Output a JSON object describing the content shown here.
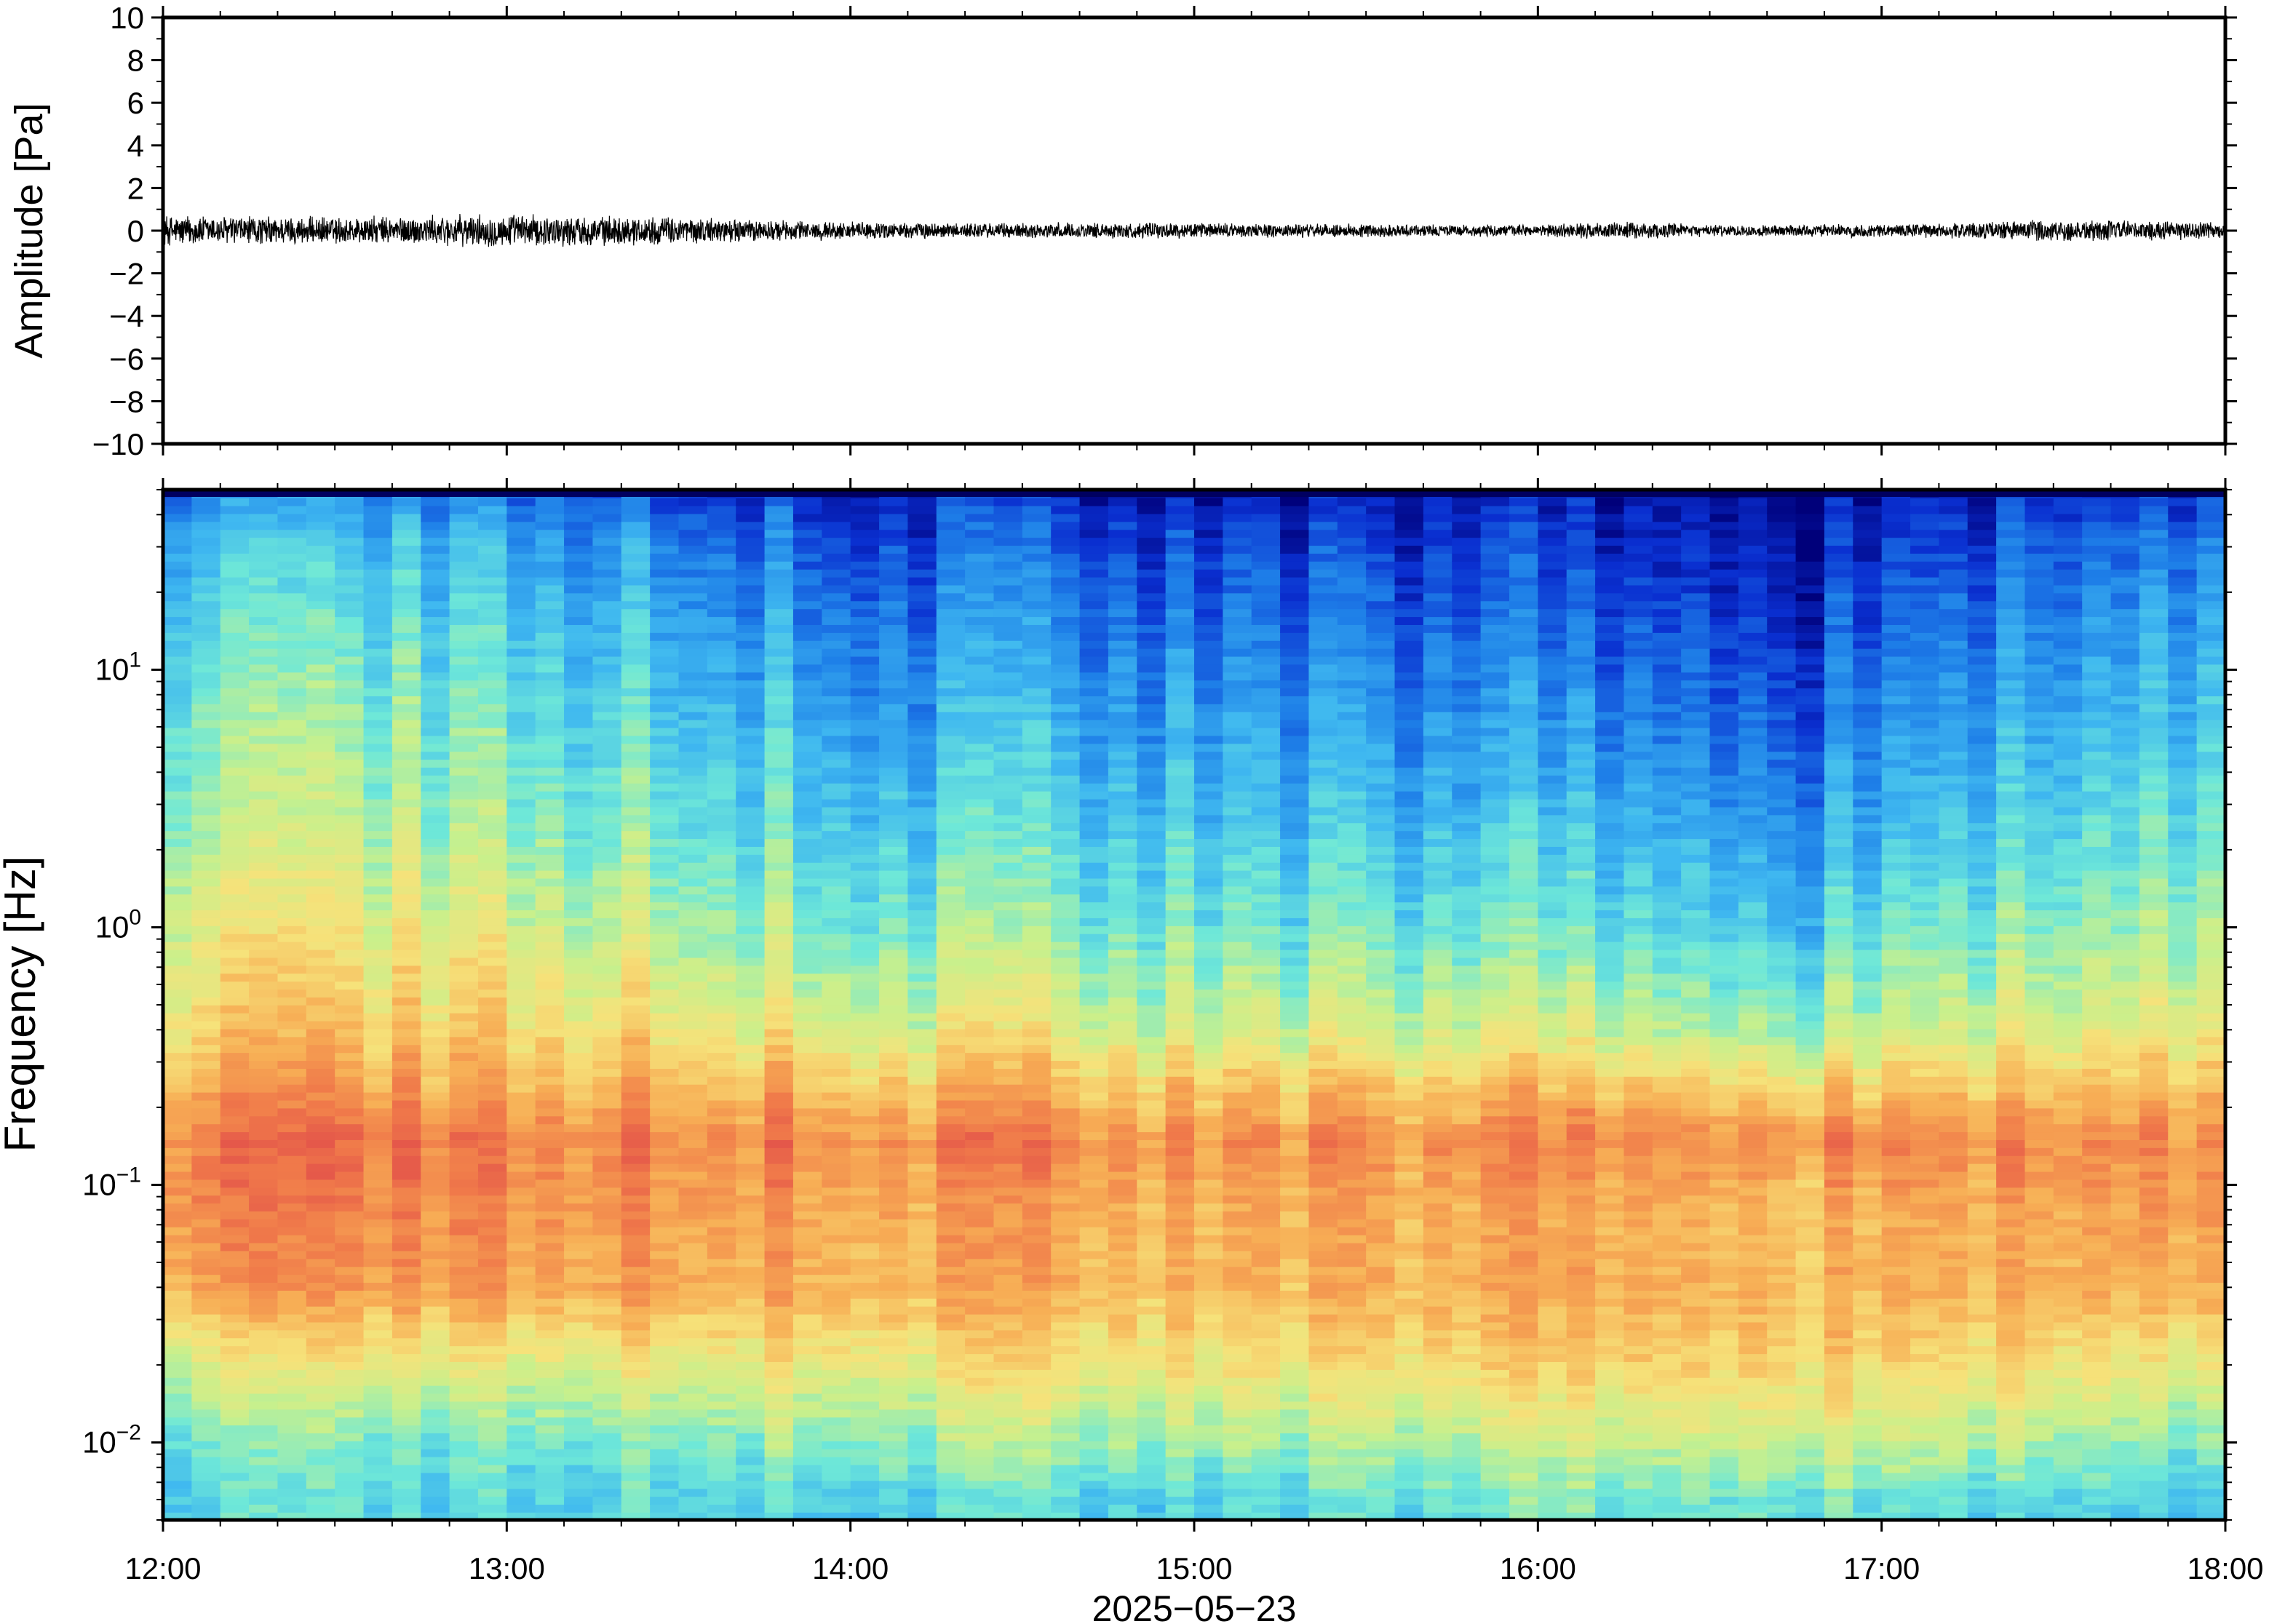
{
  "chart_data": [
    {
      "type": "line",
      "panel": "waveform",
      "ylabel": "Amplitude [Pa]",
      "ylim": [
        -10,
        10
      ],
      "yticks": [
        10,
        8,
        6,
        4,
        2,
        0,
        -2,
        -4,
        -6,
        -8,
        -10
      ],
      "ytick_labels": [
        "10",
        "8",
        "6",
        "4",
        "2",
        "0",
        "−2",
        "−4",
        "−6",
        "−8",
        "−10"
      ],
      "xlim": [
        "12:00",
        "18:00"
      ],
      "series": [
        {
          "color": "#000000",
          "envelope": {
            "x_hours": [
              12.0,
              12.25,
              12.5,
              12.75,
              13.0,
              13.25,
              13.5,
              13.75,
              14.0,
              14.25,
              14.5,
              14.75,
              15.0,
              15.25,
              15.5,
              15.75,
              16.0,
              16.25,
              16.5,
              16.75,
              17.0,
              17.25,
              17.5,
              17.75,
              18.0
            ],
            "peak_abs": [
              0.8,
              0.75,
              0.7,
              0.75,
              0.85,
              0.75,
              0.7,
              0.55,
              0.45,
              0.4,
              0.4,
              0.4,
              0.4,
              0.35,
              0.35,
              0.3,
              0.3,
              0.45,
              0.3,
              0.3,
              0.35,
              0.4,
              0.6,
              0.5,
              0.45
            ]
          }
        }
      ]
    },
    {
      "type": "heatmap",
      "panel": "spectrogram",
      "ylabel": "Frequency [Hz]",
      "yscale": "log",
      "ylim": [
        0.005,
        50
      ],
      "yticks": [
        10,
        1,
        0.1,
        0.01
      ],
      "ytick_labels": [
        {
          "base": "10",
          "exp": "1"
        },
        {
          "base": "10",
          "exp": "0"
        },
        {
          "base": "10",
          "exp": "−1"
        },
        {
          "base": "10",
          "exp": "−2"
        }
      ],
      "xlabel": "2025−05−23",
      "xlim": [
        "12:00",
        "18:00"
      ],
      "xticks": [
        "12:00",
        "13:00",
        "14:00",
        "15:00",
        "16:00",
        "17:00",
        "18:00"
      ],
      "colormap": [
        "#00007a",
        "#0a2fd0",
        "#1e7fe8",
        "#3fb8f0",
        "#6ee8d8",
        "#c8f08c",
        "#f6e27a",
        "#f7ae55",
        "#f07a4a",
        "#e04a4a"
      ],
      "levels": {
        "freq_hz": [
          0.006,
          0.01,
          0.02,
          0.04,
          0.08,
          0.15,
          0.2,
          0.4,
          1,
          3,
          10,
          30,
          48
        ],
        "hour_profiles": [
          {
            "hour": 12.0,
            "level": [
              0.4,
              0.45,
              0.6,
              0.8,
              0.86,
              0.88,
              0.82,
              0.7,
              0.62,
              0.52,
              0.45,
              0.35,
              0.25
            ]
          },
          {
            "hour": 13.0,
            "level": [
              0.4,
              0.45,
              0.62,
              0.8,
              0.85,
              0.88,
              0.82,
              0.7,
              0.6,
              0.5,
              0.42,
              0.32,
              0.22
            ]
          },
          {
            "hour": 14.0,
            "level": [
              0.4,
              0.5,
              0.65,
              0.78,
              0.8,
              0.86,
              0.8,
              0.62,
              0.48,
              0.38,
              0.28,
              0.18,
              0.1
            ]
          },
          {
            "hour": 15.0,
            "level": [
              0.4,
              0.52,
              0.66,
              0.76,
              0.78,
              0.85,
              0.78,
              0.6,
              0.46,
              0.36,
              0.26,
              0.16,
              0.08
            ]
          },
          {
            "hour": 16.0,
            "level": [
              0.45,
              0.55,
              0.7,
              0.78,
              0.78,
              0.85,
              0.78,
              0.58,
              0.44,
              0.32,
              0.22,
              0.12,
              0.06
            ]
          },
          {
            "hour": 16.75,
            "level": [
              0.45,
              0.58,
              0.7,
              0.76,
              0.74,
              0.84,
              0.75,
              0.5,
              0.36,
              0.25,
              0.14,
              0.06,
              0.02
            ]
          },
          {
            "hour": 17.0,
            "level": [
              0.42,
              0.55,
              0.68,
              0.76,
              0.76,
              0.84,
              0.76,
              0.55,
              0.42,
              0.3,
              0.2,
              0.1,
              0.05
            ]
          },
          {
            "hour": 18.0,
            "level": [
              0.38,
              0.48,
              0.64,
              0.78,
              0.82,
              0.86,
              0.8,
              0.65,
              0.55,
              0.45,
              0.36,
              0.26,
              0.16
            ]
          }
        ]
      }
    }
  ]
}
